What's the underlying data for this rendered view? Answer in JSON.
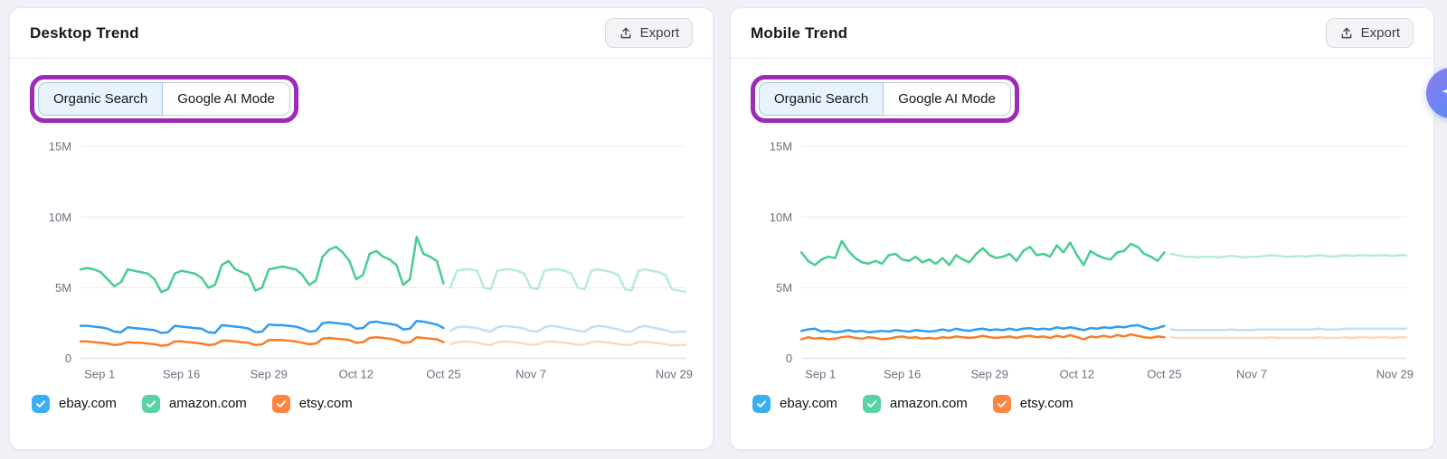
{
  "page": {
    "background": "#f0f1f6",
    "annotation_color": "#9d2bb8"
  },
  "ai_button": {
    "icon": "sparkle-icon"
  },
  "panels": [
    {
      "title": "Desktop Trend",
      "export_label": "Export",
      "tabs": [
        {
          "label": "Organic Search",
          "active": true
        },
        {
          "label": "Google AI Mode",
          "active": false
        }
      ]
    },
    {
      "title": "Mobile Trend",
      "export_label": "Export",
      "tabs": [
        {
          "label": "Organic Search",
          "active": true
        },
        {
          "label": "Google AI Mode",
          "active": false
        }
      ]
    }
  ],
  "chart_data": [
    {
      "type": "line",
      "title": "Desktop Trend",
      "y_unit": "M",
      "ylim": [
        0,
        15
      ],
      "yticks": [
        {
          "label": "0",
          "value": 0
        },
        {
          "label": "5M",
          "value": 5
        },
        {
          "label": "10M",
          "value": 10
        },
        {
          "label": "15M",
          "value": 15
        }
      ],
      "x_total_days": 90,
      "xticks": [
        {
          "label": "Sep 1",
          "day": 0
        },
        {
          "label": "Sep 16",
          "day": 15
        },
        {
          "label": "Sep 29",
          "day": 28
        },
        {
          "label": "Oct 12",
          "day": 41
        },
        {
          "label": "Oct 25",
          "day": 54
        },
        {
          "label": "Nov 7",
          "day": 67
        },
        {
          "label": "Nov 29",
          "day": 89
        }
      ],
      "forecast_start_index": 54,
      "series": [
        {
          "name": "ebay.com",
          "color": "#2d9cf5",
          "forecast_color": "#bfe0fa",
          "values": [
            2.3,
            2.3,
            2.25,
            2.2,
            2.1,
            1.9,
            1.85,
            2.2,
            2.15,
            2.1,
            2.05,
            2.0,
            1.8,
            1.85,
            2.3,
            2.25,
            2.2,
            2.15,
            2.1,
            1.85,
            1.8,
            2.35,
            2.3,
            2.25,
            2.2,
            2.1,
            1.85,
            1.9,
            2.4,
            2.35,
            2.35,
            2.3,
            2.25,
            2.1,
            1.9,
            1.95,
            2.5,
            2.55,
            2.5,
            2.45,
            2.4,
            2.1,
            2.15,
            2.55,
            2.6,
            2.5,
            2.45,
            2.35,
            2.05,
            2.1,
            2.65,
            2.6,
            2.5,
            2.4,
            2.15,
            1.95,
            2.2,
            2.25,
            2.2,
            2.15,
            2.0,
            1.9,
            2.2,
            2.3,
            2.25,
            2.2,
            2.1,
            1.95,
            1.9,
            2.2,
            2.3,
            2.25,
            2.15,
            2.05,
            1.95,
            1.9,
            2.2,
            2.3,
            2.25,
            2.15,
            2.05,
            1.9,
            1.9,
            2.2,
            2.3,
            2.2,
            2.1,
            2.0,
            1.85,
            1.9,
            1.9
          ]
        },
        {
          "name": "amazon.com",
          "color": "#47cd90",
          "forecast_color": "#b6ecd3",
          "values": [
            6.3,
            6.4,
            6.3,
            6.1,
            5.6,
            5.1,
            5.4,
            6.3,
            6.2,
            6.1,
            6.0,
            5.6,
            4.7,
            4.9,
            6.0,
            6.2,
            6.1,
            6.0,
            5.7,
            5.0,
            5.2,
            6.6,
            6.9,
            6.3,
            6.1,
            5.9,
            4.8,
            5.0,
            6.3,
            6.4,
            6.5,
            6.4,
            6.3,
            5.9,
            5.2,
            5.5,
            7.2,
            7.7,
            7.9,
            7.5,
            6.9,
            5.6,
            5.9,
            7.4,
            7.6,
            7.2,
            7.0,
            6.6,
            5.2,
            5.6,
            8.6,
            7.4,
            7.2,
            6.9,
            5.3,
            5.0,
            6.2,
            6.3,
            6.3,
            6.2,
            5.0,
            4.9,
            6.2,
            6.3,
            6.3,
            6.2,
            6.0,
            5.0,
            4.9,
            6.2,
            6.3,
            6.3,
            6.2,
            6.0,
            5.0,
            4.9,
            6.2,
            6.3,
            6.2,
            6.1,
            5.9,
            4.9,
            4.8,
            6.2,
            6.3,
            6.2,
            6.1,
            5.9,
            4.9,
            4.8,
            4.7
          ]
        },
        {
          "name": "etsy.com",
          "color": "#f97c28",
          "forecast_color": "#fcd9bd",
          "values": [
            1.2,
            1.2,
            1.15,
            1.1,
            1.05,
            0.95,
            1.0,
            1.15,
            1.1,
            1.1,
            1.05,
            1.0,
            0.9,
            0.95,
            1.2,
            1.2,
            1.15,
            1.1,
            1.05,
            0.95,
            1.0,
            1.25,
            1.25,
            1.2,
            1.15,
            1.1,
            0.95,
            1.0,
            1.3,
            1.3,
            1.3,
            1.25,
            1.2,
            1.1,
            1.0,
            1.05,
            1.4,
            1.45,
            1.4,
            1.35,
            1.3,
            1.1,
            1.15,
            1.45,
            1.5,
            1.45,
            1.4,
            1.3,
            1.1,
            1.15,
            1.5,
            1.45,
            1.4,
            1.35,
            1.15,
            1.0,
            1.15,
            1.2,
            1.18,
            1.12,
            1.0,
            0.95,
            1.15,
            1.2,
            1.18,
            1.12,
            1.05,
            0.95,
            1.0,
            1.15,
            1.2,
            1.15,
            1.1,
            1.05,
            0.95,
            1.0,
            1.15,
            1.2,
            1.15,
            1.1,
            1.0,
            0.95,
            0.98,
            1.15,
            1.18,
            1.12,
            1.08,
            1.0,
            0.92,
            0.95,
            0.95
          ]
        }
      ],
      "legend": [
        {
          "label": "ebay.com",
          "checkbox_color": "#38aff5",
          "checked": true
        },
        {
          "label": "amazon.com",
          "checkbox_color": "#57d3a4",
          "checked": true
        },
        {
          "label": "etsy.com",
          "checkbox_color": "#ff8440",
          "checked": true
        }
      ]
    },
    {
      "type": "line",
      "title": "Mobile Trend",
      "y_unit": "M",
      "ylim": [
        0,
        15
      ],
      "yticks": [
        {
          "label": "0",
          "value": 0
        },
        {
          "label": "5M",
          "value": 5
        },
        {
          "label": "10M",
          "value": 10
        },
        {
          "label": "15M",
          "value": 15
        }
      ],
      "x_total_days": 90,
      "xticks": [
        {
          "label": "Sep 1",
          "day": 0
        },
        {
          "label": "Sep 16",
          "day": 15
        },
        {
          "label": "Sep 29",
          "day": 28
        },
        {
          "label": "Oct 12",
          "day": 41
        },
        {
          "label": "Oct 25",
          "day": 54
        },
        {
          "label": "Nov 7",
          "day": 67
        },
        {
          "label": "Nov 29",
          "day": 89
        }
      ],
      "forecast_start_index": 54,
      "series": [
        {
          "name": "ebay.com",
          "color": "#2d9cf5",
          "forecast_color": "#bfe0fa",
          "values": [
            1.95,
            2.05,
            2.1,
            1.9,
            1.95,
            1.85,
            1.9,
            2.0,
            1.9,
            1.95,
            1.85,
            1.9,
            1.95,
            1.9,
            2.0,
            1.95,
            1.9,
            2.0,
            1.95,
            1.9,
            1.95,
            2.05,
            1.95,
            2.1,
            2.0,
            1.95,
            2.05,
            2.1,
            2.0,
            2.05,
            2.0,
            2.1,
            2.0,
            2.1,
            2.15,
            2.05,
            2.1,
            2.05,
            2.2,
            2.1,
            2.2,
            2.1,
            2.0,
            2.15,
            2.1,
            2.2,
            2.15,
            2.25,
            2.2,
            2.3,
            2.35,
            2.2,
            2.05,
            2.15,
            2.3,
            2.05,
            2.0,
            2.0,
            2.0,
            2.0,
            2.0,
            2.0,
            2.0,
            2.0,
            2.05,
            2.0,
            2.0,
            2.0,
            2.05,
            2.05,
            2.05,
            2.05,
            2.05,
            2.05,
            2.05,
            2.05,
            2.05,
            2.1,
            2.05,
            2.05,
            2.05,
            2.1,
            2.1,
            2.1,
            2.1,
            2.1,
            2.1,
            2.1,
            2.1,
            2.1,
            2.1
          ]
        },
        {
          "name": "amazon.com",
          "color": "#47cd90",
          "forecast_color": "#b6ecd3",
          "values": [
            7.5,
            6.9,
            6.6,
            7.0,
            7.2,
            7.1,
            8.3,
            7.6,
            7.1,
            6.8,
            6.7,
            6.9,
            6.7,
            7.3,
            7.4,
            7.0,
            6.9,
            7.2,
            6.8,
            7.0,
            6.7,
            7.1,
            6.6,
            7.3,
            7.0,
            6.8,
            7.4,
            7.8,
            7.3,
            7.1,
            7.2,
            7.4,
            6.9,
            7.6,
            7.9,
            7.3,
            7.4,
            7.2,
            8.0,
            7.5,
            8.2,
            7.3,
            6.6,
            7.6,
            7.3,
            7.1,
            7.0,
            7.5,
            7.6,
            8.1,
            7.9,
            7.4,
            7.2,
            6.9,
            7.5,
            7.4,
            7.3,
            7.2,
            7.2,
            7.15,
            7.2,
            7.2,
            7.15,
            7.2,
            7.25,
            7.2,
            7.15,
            7.2,
            7.2,
            7.25,
            7.3,
            7.25,
            7.2,
            7.2,
            7.25,
            7.2,
            7.25,
            7.3,
            7.25,
            7.2,
            7.25,
            7.3,
            7.25,
            7.3,
            7.3,
            7.25,
            7.3,
            7.3,
            7.25,
            7.3,
            7.3
          ]
        },
        {
          "name": "etsy.com",
          "color": "#f97c28",
          "forecast_color": "#fcd9bd",
          "values": [
            1.35,
            1.5,
            1.4,
            1.45,
            1.35,
            1.4,
            1.5,
            1.55,
            1.45,
            1.4,
            1.5,
            1.45,
            1.35,
            1.4,
            1.5,
            1.55,
            1.45,
            1.5,
            1.4,
            1.45,
            1.4,
            1.5,
            1.45,
            1.55,
            1.5,
            1.45,
            1.5,
            1.6,
            1.5,
            1.45,
            1.5,
            1.55,
            1.45,
            1.55,
            1.6,
            1.5,
            1.55,
            1.45,
            1.6,
            1.5,
            1.65,
            1.5,
            1.35,
            1.55,
            1.5,
            1.6,
            1.5,
            1.65,
            1.55,
            1.7,
            1.6,
            1.5,
            1.45,
            1.55,
            1.5,
            1.5,
            1.45,
            1.45,
            1.45,
            1.45,
            1.45,
            1.45,
            1.45,
            1.45,
            1.45,
            1.45,
            1.45,
            1.45,
            1.45,
            1.45,
            1.5,
            1.45,
            1.45,
            1.45,
            1.45,
            1.45,
            1.45,
            1.5,
            1.45,
            1.45,
            1.45,
            1.5,
            1.45,
            1.5,
            1.5,
            1.45,
            1.5,
            1.5,
            1.45,
            1.5,
            1.5
          ]
        }
      ],
      "legend": [
        {
          "label": "ebay.com",
          "checkbox_color": "#38aff5",
          "checked": true
        },
        {
          "label": "amazon.com",
          "checkbox_color": "#57d3a4",
          "checked": true
        },
        {
          "label": "etsy.com",
          "checkbox_color": "#ff8440",
          "checked": true
        }
      ]
    }
  ]
}
